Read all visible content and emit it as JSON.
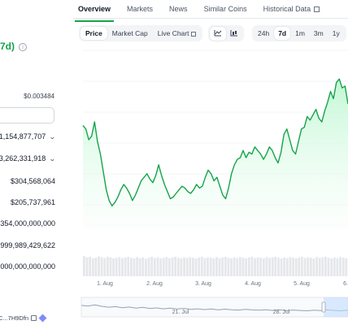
{
  "stats": {
    "change_text": "7d)",
    "info_icon_glyph": "i",
    "range_high": "$0.003484",
    "rows": [
      {
        "value": "$1,154,877,707",
        "has_chevron": true
      },
      {
        "value": "3,262,331,918",
        "has_chevron": true
      },
      {
        "value": "$304,568,064",
        "has_chevron": false
      },
      {
        "value": "$205,737,961",
        "has_chevron": false
      },
      {
        "value": "354,000,000,000",
        "has_chevron": false
      },
      {
        "value": "999,989,429,622",
        "has_chevron": false
      },
      {
        "value": "000,000,000,000",
        "has_chevron": false
      }
    ],
    "address": "C...7H9Dfn"
  },
  "tabs": [
    {
      "label": "Overview",
      "active": true
    },
    {
      "label": "Markets",
      "active": false
    },
    {
      "label": "News",
      "active": false
    },
    {
      "label": "Similar Coins",
      "active": false
    },
    {
      "label": "Historical Data",
      "active": false,
      "external": true
    }
  ],
  "toolbar": {
    "chart_types": [
      {
        "label": "Price",
        "active": true
      },
      {
        "label": "Market Cap",
        "active": false
      },
      {
        "label": "Live Chart",
        "active": false,
        "external": true
      }
    ],
    "view_icons": [
      "line-chart-icon",
      "candlestick-icon"
    ],
    "ranges": [
      {
        "label": "24h",
        "active": false
      },
      {
        "label": "7d",
        "active": true
      },
      {
        "label": "1m",
        "active": false
      },
      {
        "label": "3m",
        "active": false
      },
      {
        "label": "1y",
        "active": false
      }
    ]
  },
  "colors": {
    "line": "#16a34a",
    "fill": "#dcfce7",
    "volume": "#e5e7eb",
    "navigator": "#bfdbfe"
  },
  "chart_data": {
    "type": "area",
    "title": "",
    "xlabel": "",
    "ylabel": "",
    "x_ticks": [
      "1. Aug",
      "2. Aug",
      "3. Aug",
      "4. Aug",
      "5. Aug",
      "6."
    ],
    "navigator_ticks": [
      "21. Jul",
      "28. Jul"
    ],
    "series": [
      {
        "values": [
          0.58,
          0.56,
          0.5,
          0.52,
          0.6,
          0.49,
          0.42,
          0.32,
          0.22,
          0.16,
          0.13,
          0.15,
          0.18,
          0.22,
          0.25,
          0.23,
          0.2,
          0.16,
          0.19,
          0.23,
          0.27,
          0.29,
          0.31,
          0.28,
          0.26,
          0.3,
          0.36,
          0.3,
          0.25,
          0.21,
          0.17,
          0.18,
          0.2,
          0.22,
          0.24,
          0.23,
          0.21,
          0.2,
          0.22,
          0.25,
          0.23,
          0.24,
          0.29,
          0.33,
          0.31,
          0.27,
          0.29,
          0.24,
          0.19,
          0.17,
          0.23,
          0.31,
          0.36,
          0.39,
          0.4,
          0.44,
          0.4,
          0.43,
          0.42,
          0.46,
          0.44,
          0.42,
          0.39,
          0.42,
          0.46,
          0.44,
          0.4,
          0.37,
          0.43,
          0.53,
          0.56,
          0.5,
          0.44,
          0.42,
          0.49,
          0.56,
          0.57,
          0.63,
          0.61,
          0.64,
          0.67,
          0.62,
          0.6,
          0.66,
          0.71,
          0.77,
          0.73,
          0.82,
          0.84,
          0.79,
          0.8,
          0.7
        ]
      }
    ],
    "volume": [
      0.62,
      0.58,
      0.6,
      0.55,
      0.57,
      0.61,
      0.59,
      0.56,
      0.6,
      0.58,
      0.55,
      0.57,
      0.59,
      0.56,
      0.58,
      0.6,
      0.57,
      0.55,
      0.59,
      0.56,
      0.58,
      0.54,
      0.57,
      0.6,
      0.56,
      0.58,
      0.55,
      0.57,
      0.59,
      0.56,
      0.58,
      0.6,
      0.57,
      0.55,
      0.58,
      0.56,
      0.59,
      0.57,
      0.55,
      0.58,
      0.6,
      0.56,
      0.58,
      0.57,
      0.55,
      0.59,
      0.56,
      0.58,
      0.6,
      0.57,
      0.55,
      0.58,
      0.56,
      0.59,
      0.57,
      0.55,
      0.58,
      0.6,
      0.56,
      0.58,
      0.57,
      0.55,
      0.59,
      0.56,
      0.58,
      0.6,
      0.57,
      0.55,
      0.58,
      0.56,
      0.59,
      0.57,
      0.55,
      0.58,
      0.6,
      0.56,
      0.58,
      0.57,
      0.55,
      0.59,
      0.56,
      0.58,
      0.6,
      0.57,
      0.55,
      0.58,
      0.56,
      0.59,
      0.57,
      0.55
    ],
    "navigator": [
      0.55,
      0.52,
      0.58,
      0.5,
      0.45,
      0.48,
      0.42,
      0.46,
      0.4,
      0.44,
      0.38,
      0.41,
      0.36,
      0.4,
      0.35,
      0.38,
      0.33,
      0.36,
      0.32,
      0.35,
      0.3,
      0.34,
      0.31,
      0.29,
      0.33,
      0.3,
      0.28,
      0.31,
      0.27,
      0.3,
      0.26,
      0.29,
      0.27,
      0.25,
      0.28,
      0.26,
      0.3,
      0.27,
      0.25,
      0.28
    ],
    "grid": true
  }
}
